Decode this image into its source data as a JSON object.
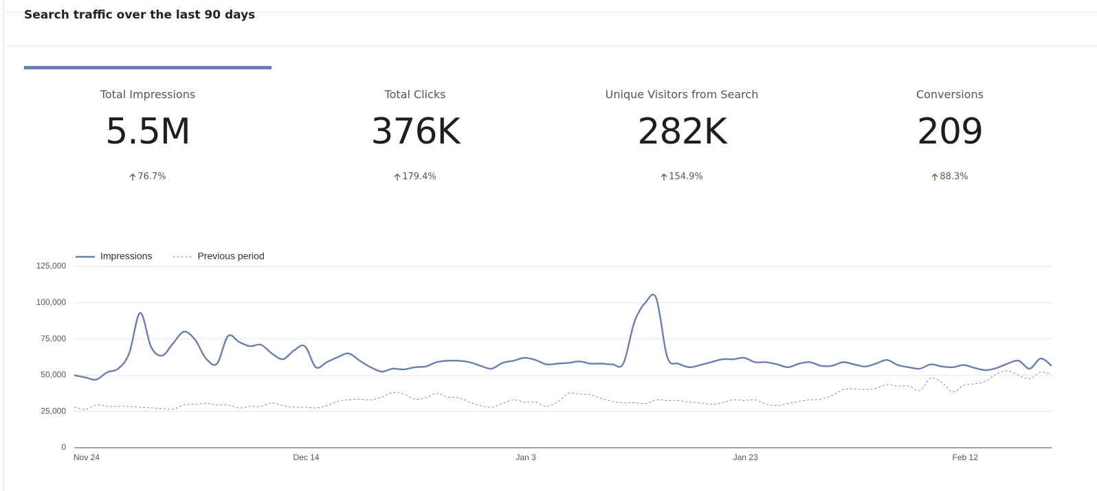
{
  "header": {
    "title": "Search traffic over the last 90 days"
  },
  "metrics": [
    {
      "label": "Total Impressions",
      "value": "5.5M",
      "change": "76.7%"
    },
    {
      "label": "Total Clicks",
      "value": "376K",
      "change": "179.4%"
    },
    {
      "label": "Unique Visitors from Search",
      "value": "282K",
      "change": "154.9%"
    },
    {
      "label": "Conversions",
      "value": "209",
      "change": "88.3%"
    }
  ],
  "chart_data": {
    "type": "line",
    "grid": true,
    "legend": "top-left",
    "categories": [
      "Nov 24",
      null,
      null,
      null,
      null,
      null,
      null,
      null,
      null,
      null,
      null,
      null,
      null,
      null,
      null,
      null,
      null,
      null,
      null,
      null,
      "Dec 14",
      null,
      null,
      null,
      null,
      null,
      null,
      null,
      null,
      null,
      null,
      null,
      null,
      null,
      null,
      null,
      null,
      null,
      null,
      null,
      "Jan 3",
      null,
      null,
      null,
      null,
      null,
      null,
      null,
      null,
      null,
      null,
      null,
      null,
      null,
      null,
      null,
      null,
      null,
      null,
      null,
      "Jan 23",
      null,
      null,
      null,
      null,
      null,
      null,
      null,
      null,
      null,
      null,
      null,
      null,
      null,
      null,
      null,
      null,
      null,
      null,
      null,
      "Feb 12",
      null,
      null,
      null,
      null,
      null,
      null,
      null,
      null,
      null
    ],
    "ylim": [
      0,
      125000
    ],
    "yticks": [
      0,
      {
        "value": 25000,
        "label": "25,000"
      },
      {
        "value": 50000,
        "label": "50,000"
      },
      {
        "value": 75000,
        "label": "75,000"
      },
      {
        "value": 100000,
        "label": "100,000"
      },
      {
        "value": 125000,
        "label": "125,000"
      }
    ],
    "series": [
      {
        "name": "Impressions",
        "color": "#6a7fb0",
        "style": "solid",
        "values": [
          50000,
          48500,
          47000,
          52000,
          54500,
          65000,
          93000,
          69500,
          63500,
          72000,
          80000,
          74500,
          61500,
          58000,
          77000,
          73000,
          70000,
          71000,
          65000,
          61000,
          67000,
          70000,
          55500,
          59000,
          62500,
          65000,
          60000,
          55500,
          52500,
          54500,
          54000,
          55500,
          56000,
          59000,
          60000,
          60000,
          59000,
          56500,
          54500,
          58500,
          60000,
          62000,
          60500,
          57500,
          58000,
          58500,
          59500,
          58000,
          58000,
          57500,
          58000,
          86500,
          100000,
          103000,
          62500,
          58000,
          55500,
          57000,
          59000,
          61000,
          61000,
          62000,
          59000,
          59000,
          57500,
          55500,
          58000,
          59000,
          56500,
          56500,
          59000,
          57500,
          56000,
          58000,
          60500,
          57000,
          55500,
          54500,
          57500,
          56000,
          55500,
          57000,
          55000,
          53500,
          55000,
          58000,
          60000,
          54500,
          61500,
          56500
        ]
      },
      {
        "name": "Previous period",
        "color": "#8a8a8a",
        "style": "dashed",
        "values": [
          28000,
          26500,
          29500,
          28500,
          28500,
          28500,
          28000,
          27500,
          27000,
          26500,
          29500,
          30000,
          30500,
          29500,
          29500,
          27500,
          28500,
          28500,
          31000,
          29000,
          28000,
          28000,
          27500,
          29000,
          32000,
          33000,
          33500,
          33000,
          35000,
          38000,
          37000,
          33500,
          34500,
          37500,
          35000,
          34500,
          31500,
          29000,
          28000,
          30500,
          33000,
          31500,
          31500,
          28500,
          31500,
          37500,
          37000,
          36500,
          34000,
          32000,
          31000,
          31000,
          30500,
          33000,
          32500,
          32500,
          31500,
          31000,
          30000,
          31000,
          33000,
          32500,
          33000,
          30000,
          29000,
          30500,
          32000,
          33000,
          33500,
          36000,
          40000,
          40500,
          40000,
          41000,
          43500,
          42500,
          42500,
          39500,
          48000,
          45000,
          38500,
          43000,
          44000,
          46000,
          51000,
          53000,
          50000,
          47500,
          52000,
          50500
        ]
      }
    ]
  }
}
